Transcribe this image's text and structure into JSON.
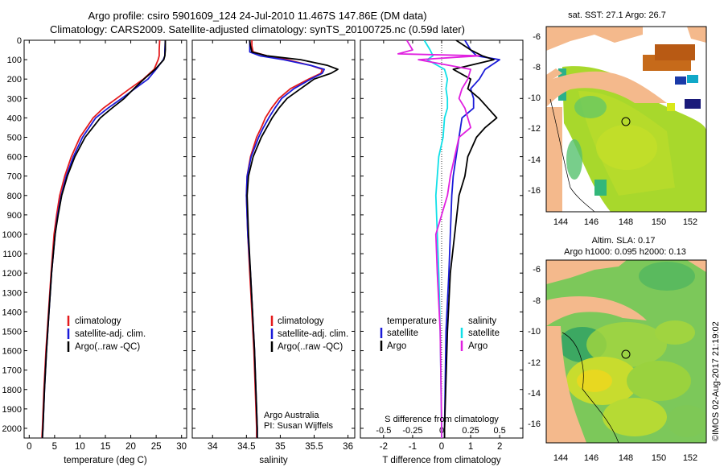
{
  "header": {
    "title_line1": "Argo profile: csiro 5901609_124 24-Jul-2010 11.467S 147.86E (DM data)",
    "title_line2": "Climatology: CARS2009. Satellite-adjusted climatology: synTS_20100725.nc (0.59d later)"
  },
  "colors": {
    "climatology": "#e41a1c",
    "satellite": "#1a1ad8",
    "argo": "#000000",
    "argo_salinity": "#e020e0",
    "satellite_salinity": "#10e0e8",
    "land": "#f4b98c"
  },
  "depth_axis": {
    "ylim": [
      0,
      2050
    ],
    "ticks": [
      0,
      100,
      200,
      300,
      400,
      500,
      600,
      700,
      800,
      900,
      1000,
      1100,
      1200,
      1300,
      1400,
      1500,
      1600,
      1700,
      1800,
      1900,
      2000
    ]
  },
  "chart_data": [
    {
      "type": "line",
      "id": "temperature",
      "xlabel": "temperature (deg C)",
      "xlim": [
        -1,
        31
      ],
      "xticks": [
        0,
        5,
        10,
        15,
        20,
        25,
        30
      ],
      "legend": [
        "climatology",
        "satellite-adj. clim.",
        "Argo(..raw -QC)"
      ],
      "series": [
        {
          "name": "climatology",
          "depth": [
            0,
            50,
            80,
            100,
            150,
            200,
            250,
            300,
            350,
            400,
            500,
            600,
            700,
            800,
            900,
            1000,
            1200,
            1400,
            1600,
            1800,
            2000,
            2050
          ],
          "values": [
            25.7,
            25.6,
            25.6,
            25.4,
            24.6,
            22.5,
            19.8,
            17.2,
            14.6,
            12.6,
            10.0,
            8.3,
            7.0,
            6.0,
            5.4,
            4.9,
            4.3,
            3.8,
            3.3,
            2.9,
            2.6,
            2.5
          ]
        },
        {
          "name": "satellite-adj. clim.",
          "depth": [
            0,
            50,
            80,
            100,
            150,
            200,
            250,
            300,
            350,
            400,
            500,
            600,
            700,
            800,
            900,
            1000,
            1200,
            1400,
            1600,
            1800,
            2000,
            2050
          ],
          "values": [
            26.8,
            26.7,
            26.7,
            26.4,
            25.0,
            23.4,
            20.8,
            18.2,
            15.5,
            13.1,
            10.5,
            8.7,
            7.3,
            6.3,
            5.6,
            5.1,
            4.4,
            3.9,
            3.4,
            3.0,
            2.7,
            2.6
          ]
        },
        {
          "name": "Argo(..raw -QC)",
          "depth": [
            0,
            50,
            80,
            100,
            150,
            200,
            250,
            300,
            350,
            400,
            500,
            600,
            700,
            800,
            900,
            1000,
            1200,
            1400,
            1600,
            1800,
            2000,
            2050
          ],
          "values": [
            26.8,
            26.8,
            26.7,
            26.5,
            24.8,
            22.6,
            20.6,
            18.7,
            16.3,
            14.0,
            11.0,
            9.0,
            7.5,
            6.4,
            5.7,
            5.1,
            4.4,
            3.9,
            3.4,
            3.0,
            2.7,
            2.6
          ]
        }
      ]
    },
    {
      "type": "line",
      "id": "salinity",
      "xlabel": "salinity",
      "xlim": [
        33.7,
        36.1
      ],
      "xticks": [
        34,
        34.5,
        35,
        35.5,
        36
      ],
      "legend": [
        "climatology",
        "satellite-adj. clim.",
        "Argo(..raw -QC)"
      ],
      "annotation": [
        "Argo Australia",
        "PI: Susan Wijffels"
      ],
      "series": [
        {
          "name": "climatology",
          "depth": [
            0,
            30,
            60,
            80,
            100,
            130,
            150,
            170,
            200,
            250,
            300,
            350,
            400,
            450,
            500,
            600,
            700,
            800,
            1000,
            1200,
            1400,
            1600,
            1800,
            2000,
            2050
          ],
          "values": [
            34.58,
            34.58,
            34.6,
            34.8,
            35.1,
            35.45,
            35.62,
            35.6,
            35.42,
            35.15,
            34.98,
            34.87,
            34.78,
            34.72,
            34.65,
            34.56,
            34.51,
            34.5,
            34.52,
            34.55,
            34.58,
            34.61,
            34.63,
            34.65,
            34.65
          ]
        },
        {
          "name": "satellite-adj. clim.",
          "depth": [
            0,
            30,
            60,
            80,
            100,
            130,
            150,
            170,
            200,
            250,
            300,
            350,
            400,
            450,
            500,
            600,
            700,
            800,
            1000,
            1200,
            1400,
            1600,
            1800,
            2000,
            2050
          ],
          "values": [
            34.55,
            34.55,
            34.55,
            34.7,
            35.05,
            35.45,
            35.65,
            35.62,
            35.45,
            35.2,
            35.02,
            34.92,
            34.83,
            34.75,
            34.68,
            34.57,
            34.51,
            34.5,
            34.52,
            34.56,
            34.59,
            34.62,
            34.64,
            34.66,
            34.66
          ]
        },
        {
          "name": "Argo(..raw -QC)",
          "depth": [
            0,
            30,
            60,
            80,
            100,
            130,
            150,
            170,
            200,
            250,
            300,
            350,
            400,
            450,
            500,
            600,
            700,
            800,
            1000,
            1200,
            1400,
            1600,
            1800,
            2000,
            2050
          ],
          "values": [
            34.55,
            34.56,
            34.58,
            34.8,
            35.3,
            35.7,
            35.85,
            35.75,
            35.5,
            35.3,
            35.1,
            34.98,
            34.88,
            34.8,
            34.72,
            34.6,
            34.53,
            34.51,
            34.53,
            34.56,
            34.59,
            34.62,
            34.64,
            34.66,
            34.66
          ]
        }
      ]
    },
    {
      "type": "line",
      "id": "difference",
      "xlabel": "T difference from climatology",
      "xlabel_top": "S difference from climatology",
      "xlim": [
        -2.8,
        2.8
      ],
      "xticks_T": [
        -2,
        -1,
        0,
        1,
        2
      ],
      "xticks_S_labels": [
        "-0.5",
        "-0.25",
        "0",
        "0.25",
        "0.5"
      ],
      "xticks_S_pos": [
        -2,
        -1,
        0,
        1,
        2
      ],
      "legend_T": {
        "title": "temperature",
        "items": [
          "satellite",
          "Argo"
        ]
      },
      "legend_S": {
        "title": "salinity",
        "items": [
          "satellite",
          "Argo"
        ]
      },
      "series": [
        {
          "name": "T satellite",
          "depth": [
            0,
            50,
            80,
            100,
            150,
            200,
            250,
            300,
            350,
            400,
            500,
            600,
            700,
            800,
            1000,
            1200,
            1500,
            2000,
            2050
          ],
          "values": [
            0.8,
            1.0,
            1.2,
            2.0,
            1.5,
            1.3,
            1.0,
            1.1,
            1.1,
            0.7,
            0.6,
            0.5,
            0.4,
            0.35,
            0.3,
            0.25,
            0.15,
            0.1,
            0.1
          ]
        },
        {
          "name": "T Argo",
          "depth": [
            0,
            50,
            80,
            100,
            150,
            200,
            250,
            300,
            350,
            400,
            450,
            500,
            600,
            700,
            800,
            1000,
            1200,
            1500,
            2000,
            2050
          ],
          "values": [
            0.5,
            1.0,
            1.4,
            1.8,
            0.4,
            1.0,
            0.9,
            1.3,
            1.6,
            1.9,
            1.5,
            1.2,
            0.9,
            0.8,
            0.6,
            0.45,
            0.3,
            0.2,
            0.1,
            0.1
          ]
        },
        {
          "name": "S satellite",
          "depth": [
            0,
            50,
            80,
            100,
            150,
            200,
            250,
            300,
            350,
            400,
            500,
            600,
            700,
            800,
            1000,
            1200,
            1500,
            2000,
            2050
          ],
          "values": [
            -0.6,
            -0.4,
            -0.3,
            -0.5,
            0.1,
            0.2,
            0.15,
            0.2,
            0.2,
            0.1,
            0.05,
            -0.1,
            -0.15,
            -0.2,
            -0.15,
            -0.1,
            -0.05,
            0.0,
            0.0
          ]
        },
        {
          "name": "S Argo",
          "depth": [
            0,
            50,
            70,
            80,
            100,
            150,
            200,
            250,
            300,
            350,
            400,
            450,
            500,
            700,
            800,
            1000,
            1200,
            1500,
            2000,
            2050
          ],
          "values": [
            -1.2,
            -1.0,
            -1.5,
            1.3,
            -0.8,
            1.0,
            0.9,
            0.7,
            0.6,
            0.8,
            0.9,
            1.0,
            0.6,
            0.3,
            0.2,
            -0.2,
            -0.15,
            -0.05,
            0.0,
            0.0
          ]
        }
      ]
    }
  ],
  "maps": {
    "sst": {
      "title": "sat. SST: 27.1 Argo: 26.7",
      "yticks": [
        "-6",
        "-8",
        "-10",
        "-12",
        "-14",
        "-16"
      ],
      "xticks": [
        "144",
        "146",
        "148",
        "150",
        "152"
      ]
    },
    "sla": {
      "title_line1": "Altim. SLA: 0.17",
      "title_line2": "Argo h1000: 0.095 h2000: 0.13",
      "yticks": [
        "-6",
        "-8",
        "-10",
        "-12",
        "-14",
        "-16"
      ],
      "xticks": [
        "144",
        "146",
        "148",
        "150",
        "152"
      ]
    }
  },
  "footer_stamp": "©IMOS 02-Aug-2017 21:19:02"
}
